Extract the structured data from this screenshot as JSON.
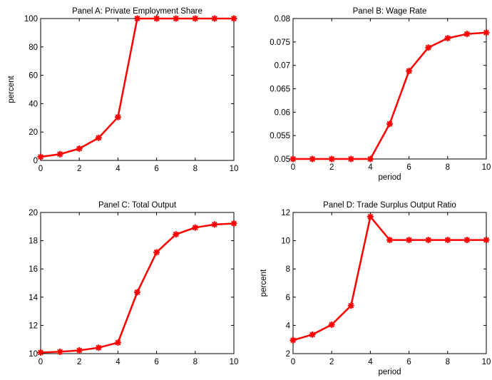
{
  "colors": {
    "series": "#ff0000",
    "axis": "#000000",
    "background": "#ffffff"
  },
  "chart_data": [
    {
      "type": "line",
      "title": "Panel A: Private Employment Share",
      "xlabel": "",
      "ylabel": "percent",
      "x": [
        0,
        1,
        2,
        3,
        4,
        5,
        6,
        7,
        8,
        9,
        10
      ],
      "series": [
        {
          "values": [
            2.5,
            4.4,
            8.3,
            15.9,
            30.5,
            100,
            100,
            100,
            100,
            100,
            100
          ]
        }
      ],
      "xlim": [
        0,
        10
      ],
      "ylim": [
        0,
        100
      ],
      "xticks": [
        "0",
        "2",
        "4",
        "6",
        "8",
        "10"
      ],
      "yticks": [
        "0",
        "20",
        "40",
        "60",
        "80",
        "100"
      ],
      "marker": "asterisk",
      "grid": false,
      "legend": "none"
    },
    {
      "type": "line",
      "title": "Panel B: Wage Rate",
      "xlabel": "period",
      "ylabel": "",
      "x": [
        0,
        1,
        2,
        3,
        4,
        5,
        6,
        7,
        8,
        9,
        10
      ],
      "series": [
        {
          "values": [
            0.05,
            0.05,
            0.05,
            0.05,
            0.05,
            0.0575,
            0.0688,
            0.0738,
            0.0758,
            0.0767,
            0.077
          ]
        }
      ],
      "xlim": [
        0,
        10
      ],
      "ylim": [
        0.05,
        0.08
      ],
      "xticks": [
        "0",
        "2",
        "4",
        "6",
        "8",
        "10"
      ],
      "yticks": [
        "0.05",
        "0.055",
        "0.06",
        "0.065",
        "0.07",
        "0.075",
        "0.08"
      ],
      "marker": "asterisk",
      "grid": false,
      "legend": "none"
    },
    {
      "type": "line",
      "title": "Panel C: Total Output",
      "xlabel": "",
      "ylabel": "",
      "x": [
        0,
        1,
        2,
        3,
        4,
        5,
        6,
        7,
        8,
        9,
        10
      ],
      "series": [
        {
          "values": [
            10.08,
            10.13,
            10.23,
            10.42,
            10.78,
            14.35,
            17.18,
            18.45,
            18.93,
            19.15,
            19.22
          ]
        }
      ],
      "xlim": [
        0,
        10
      ],
      "ylim": [
        10,
        20
      ],
      "xticks": [
        "0",
        "2",
        "4",
        "6",
        "8",
        "10"
      ],
      "yticks": [
        "10",
        "12",
        "14",
        "16",
        "18",
        "20"
      ],
      "marker": "asterisk",
      "grid": false,
      "legend": "none"
    },
    {
      "type": "line",
      "title": "Panel D: Trade Surplus Output Ratio",
      "xlabel": "period",
      "ylabel": "percent",
      "x": [
        0,
        1,
        2,
        3,
        4,
        5,
        6,
        7,
        8,
        9,
        10
      ],
      "series": [
        {
          "values": [
            2.95,
            3.35,
            4.05,
            5.4,
            11.7,
            10.05,
            10.05,
            10.05,
            10.05,
            10.05,
            10.05
          ]
        }
      ],
      "xlim": [
        0,
        10
      ],
      "ylim": [
        2,
        12
      ],
      "xticks": [
        "0",
        "2",
        "4",
        "6",
        "8",
        "10"
      ],
      "yticks": [
        "2",
        "4",
        "6",
        "8",
        "10",
        "12"
      ],
      "marker": "asterisk",
      "grid": false,
      "legend": "none"
    }
  ]
}
